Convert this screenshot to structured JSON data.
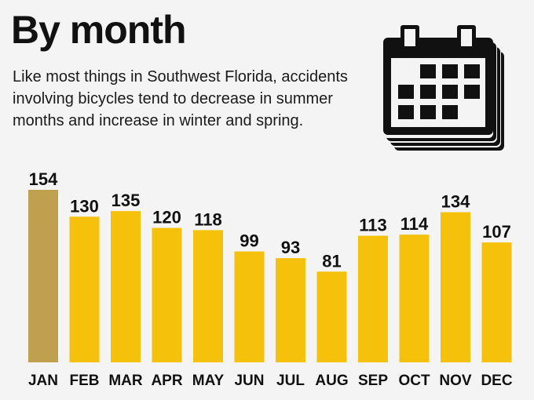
{
  "header": {
    "title": "By month",
    "subtitle": "Like most things in Southwest Florida, accidents involving bicycles tend to decrease in summer months and increase in winter and spring."
  },
  "icon": "calendar-icon",
  "colors": {
    "bar": "#f6c10a",
    "bar_highlight": "#bfa04f",
    "background": "#f4f4f4",
    "text": "#111111"
  },
  "chart_data": {
    "type": "bar",
    "title": "By month",
    "categories": [
      "JAN",
      "FEB",
      "MAR",
      "APR",
      "MAY",
      "JUN",
      "JUL",
      "AUG",
      "SEP",
      "OCT",
      "NOV",
      "DEC"
    ],
    "values": [
      154,
      130,
      135,
      120,
      118,
      99,
      93,
      81,
      113,
      114,
      134,
      107
    ],
    "highlight_index": 0,
    "xlabel": "",
    "ylabel": "",
    "ylim": [
      0,
      154
    ],
    "grid": false,
    "legend": "none"
  }
}
